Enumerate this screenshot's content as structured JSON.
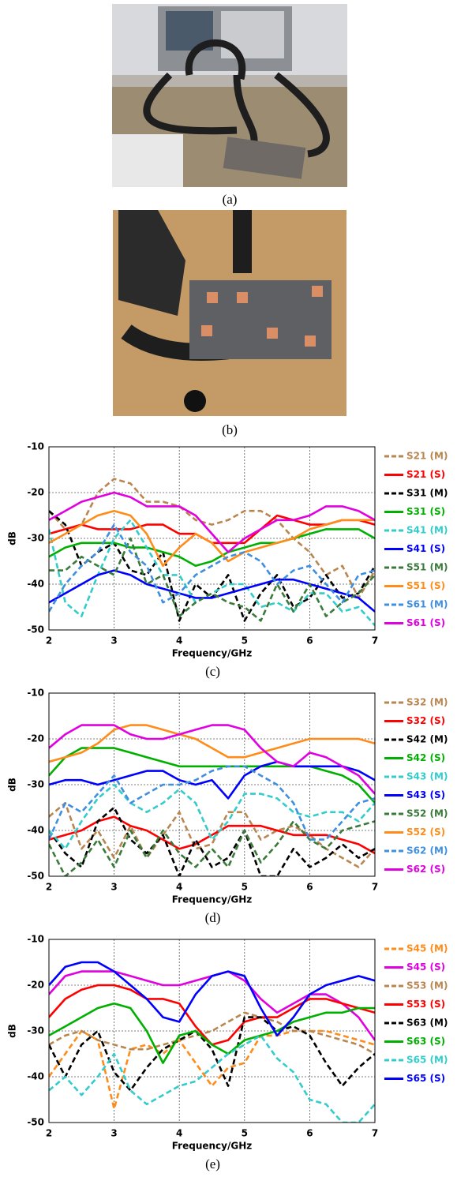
{
  "photos": [
    {
      "caption": "(a)"
    },
    {
      "caption": "(b)"
    }
  ],
  "chart_data": [
    {
      "type": "line",
      "caption": "(c)",
      "xlabel": "Frequency/GHz",
      "ylabel": "dB",
      "grid": true,
      "xlim": [
        2,
        7
      ],
      "xticks": [
        2,
        3,
        4,
        5,
        6,
        7
      ],
      "ylim": [
        -50,
        -10
      ],
      "yticks": [
        -50,
        -40,
        -30,
        -20,
        -10
      ],
      "x": [
        2,
        2.25,
        2.5,
        2.75,
        3,
        3.25,
        3.5,
        3.75,
        4,
        4.25,
        4.5,
        4.75,
        5,
        5.25,
        5.5,
        5.75,
        6,
        6.25,
        6.5,
        6.75,
        7
      ],
      "series": [
        {
          "name": "S21 (M)",
          "color": "#b98650",
          "dashed": true,
          "values": [
            -24,
            -28,
            -27,
            -20,
            -17,
            -18,
            -22,
            -22,
            -23,
            -26,
            -27,
            -26,
            -24,
            -24,
            -26,
            -30,
            -33,
            -38,
            -36,
            -43,
            -37
          ]
        },
        {
          "name": "S21 (S)",
          "color": "#ff0000",
          "dashed": false,
          "values": [
            -29,
            -28,
            -27,
            -28,
            -28,
            -28,
            -27,
            -27,
            -29,
            -29,
            -31,
            -31,
            -31,
            -28,
            -25,
            -26,
            -27,
            -27,
            -26,
            -26,
            -27
          ]
        },
        {
          "name": "S31 (M)",
          "color": "#000000",
          "dashed": true,
          "values": [
            -24,
            -27,
            -36,
            -33,
            -31,
            -37,
            -38,
            -33,
            -48,
            -40,
            -43,
            -38,
            -48,
            -42,
            -38,
            -45,
            -43,
            -38,
            -43,
            -42,
            -36
          ]
        },
        {
          "name": "S31 (S)",
          "color": "#00b000",
          "dashed": false,
          "values": [
            -34,
            -32,
            -31,
            -31,
            -31,
            -32,
            -32,
            -33,
            -34,
            -36,
            -35,
            -33,
            -32,
            -31,
            -31,
            -30,
            -29,
            -28,
            -28,
            -28,
            -30
          ]
        },
        {
          "name": "S41 (M)",
          "color": "#33cccc",
          "dashed": true,
          "values": [
            -28,
            -44,
            -47,
            -38,
            -30,
            -26,
            -32,
            -38,
            -38,
            -44,
            -42,
            -40,
            -40,
            -45,
            -44,
            -46,
            -42,
            -42,
            -46,
            -45,
            -49
          ]
        },
        {
          "name": "S41 (S)",
          "color": "#0000ff",
          "dashed": false,
          "values": [
            -44,
            -42,
            -40,
            -38,
            -37,
            -38,
            -40,
            -41,
            -42,
            -43,
            -43,
            -42,
            -41,
            -40,
            -39,
            -39,
            -40,
            -41,
            -42,
            -43,
            -46
          ]
        },
        {
          "name": "S51 (M)",
          "color": "#3a7a3a",
          "dashed": true,
          "values": [
            -37,
            -37,
            -34,
            -36,
            -38,
            -30,
            -40,
            -38,
            -47,
            -44,
            -42,
            -44,
            -45,
            -48,
            -40,
            -46,
            -40,
            -47,
            -44,
            -42,
            -38
          ]
        },
        {
          "name": "S51 (S)",
          "color": "#ff8c1a",
          "dashed": false,
          "values": [
            -31,
            -29,
            -27,
            -25,
            -24,
            -25,
            -29,
            -36,
            -32,
            -29,
            -31,
            -35,
            -33,
            -32,
            -31,
            -30,
            -28,
            -27,
            -26,
            -26,
            -26
          ]
        },
        {
          "name": "S61 (M)",
          "color": "#3f8fe0",
          "dashed": true,
          "values": [
            -46,
            -40,
            -36,
            -33,
            -27,
            -33,
            -36,
            -44,
            -42,
            -38,
            -36,
            -34,
            -33,
            -35,
            -40,
            -37,
            -36,
            -40,
            -44,
            -38,
            -37
          ]
        },
        {
          "name": "S61 (S)",
          "color": "#e000e0",
          "dashed": false,
          "values": [
            -26,
            -24,
            -22,
            -21,
            -20,
            -21,
            -23,
            -23,
            -23,
            -25,
            -29,
            -33,
            -30,
            -28,
            -26,
            -26,
            -25,
            -23,
            -23,
            -24,
            -26
          ]
        }
      ]
    },
    {
      "type": "line",
      "caption": "(d)",
      "xlabel": "Frequency/GHz",
      "ylabel": "dB",
      "grid": true,
      "xlim": [
        2,
        7
      ],
      "xticks": [
        2,
        3,
        4,
        5,
        6,
        7
      ],
      "ylim": [
        -50,
        -10
      ],
      "yticks": [
        -50,
        -40,
        -30,
        -20,
        -10
      ],
      "x": [
        2,
        2.25,
        2.5,
        2.75,
        3,
        3.25,
        3.5,
        3.75,
        4,
        4.25,
        4.5,
        4.75,
        5,
        5.25,
        5.5,
        5.75,
        6,
        6.25,
        6.5,
        6.75,
        7
      ],
      "series": [
        {
          "name": "S32 (M)",
          "color": "#b98650",
          "dashed": true,
          "values": [
            -37,
            -34,
            -44,
            -40,
            -46,
            -39,
            -46,
            -41,
            -36,
            -44,
            -43,
            -36,
            -36,
            -42,
            -40,
            -39,
            -41,
            -44,
            -46,
            -48,
            -44
          ]
        },
        {
          "name": "S32 (S)",
          "color": "#ff0000",
          "dashed": false,
          "values": [
            -42,
            -41,
            -40,
            -38,
            -37,
            -39,
            -40,
            -42,
            -44,
            -43,
            -41,
            -39,
            -39,
            -39,
            -40,
            -41,
            -41,
            -41,
            -42,
            -43,
            -45
          ]
        },
        {
          "name": "S42 (M)",
          "color": "#000000",
          "dashed": true,
          "values": [
            -40,
            -45,
            -48,
            -38,
            -35,
            -42,
            -45,
            -41,
            -50,
            -42,
            -48,
            -46,
            -40,
            -50,
            -50,
            -44,
            -48,
            -46,
            -43,
            -46,
            -44
          ]
        },
        {
          "name": "S42 (S)",
          "color": "#00b000",
          "dashed": false,
          "values": [
            -28,
            -24,
            -22,
            -22,
            -22,
            -23,
            -24,
            -25,
            -26,
            -26,
            -26,
            -26,
            -26,
            -26,
            -26,
            -26,
            -26,
            -27,
            -28,
            -30,
            -34
          ]
        },
        {
          "name": "S43 (M)",
          "color": "#33cccc",
          "dashed": true,
          "values": [
            -40,
            -44,
            -38,
            -33,
            -30,
            -34,
            -36,
            -34,
            -31,
            -34,
            -42,
            -38,
            -32,
            -32,
            -33,
            -36,
            -37,
            -36,
            -36,
            -38,
            -34
          ]
        },
        {
          "name": "S43 (S)",
          "color": "#0000ff",
          "dashed": false,
          "values": [
            -30,
            -29,
            -29,
            -30,
            -29,
            -28,
            -27,
            -27,
            -29,
            -30,
            -29,
            -33,
            -28,
            -26,
            -25,
            -26,
            -26,
            -26,
            -26,
            -27,
            -29
          ]
        },
        {
          "name": "S52 (M)",
          "color": "#3a7a3a",
          "dashed": true,
          "values": [
            -43,
            -50,
            -47,
            -42,
            -48,
            -40,
            -46,
            -40,
            -45,
            -48,
            -44,
            -48,
            -40,
            -47,
            -43,
            -38,
            -42,
            -44,
            -40,
            -39,
            -38
          ]
        },
        {
          "name": "S52 (S)",
          "color": "#ff8c1a",
          "dashed": false,
          "values": [
            -25,
            -24,
            -23,
            -21,
            -18,
            -17,
            -17,
            -18,
            -19,
            -20,
            -22,
            -24,
            -24,
            -23,
            -22,
            -21,
            -20,
            -20,
            -20,
            -20,
            -21
          ]
        },
        {
          "name": "S62 (M)",
          "color": "#3f8fe0",
          "dashed": true,
          "values": [
            -42,
            -34,
            -36,
            -32,
            -28,
            -34,
            -32,
            -30,
            -30,
            -29,
            -27,
            -26,
            -26,
            -28,
            -30,
            -34,
            -42,
            -42,
            -38,
            -34,
            -33
          ]
        },
        {
          "name": "S62 (S)",
          "color": "#e000e0",
          "dashed": false,
          "values": [
            -22,
            -19,
            -17,
            -17,
            -17,
            -19,
            -20,
            -20,
            -19,
            -18,
            -17,
            -17,
            -18,
            -22,
            -25,
            -26,
            -23,
            -24,
            -26,
            -28,
            -32
          ]
        }
      ]
    },
    {
      "type": "line",
      "caption": "(e)",
      "xlabel": "Frequency/GHz",
      "ylabel": "dB",
      "grid": true,
      "xlim": [
        2,
        7
      ],
      "xticks": [
        2,
        3,
        4,
        5,
        6,
        7
      ],
      "ylim": [
        -50,
        -10
      ],
      "yticks": [
        -50,
        -40,
        -30,
        -20,
        -10
      ],
      "x": [
        2,
        2.25,
        2.5,
        2.75,
        3,
        3.25,
        3.5,
        3.75,
        4,
        4.25,
        4.5,
        4.75,
        5,
        5.25,
        5.5,
        5.75,
        6,
        6.25,
        6.5,
        6.75,
        7
      ],
      "series": [
        {
          "name": "S45 (M)",
          "color": "#ff8c1a",
          "dashed": true,
          "values": [
            -40,
            -35,
            -30,
            -32,
            -47,
            -34,
            -33,
            -35,
            -32,
            -37,
            -42,
            -38,
            -37,
            -31,
            -31,
            -30,
            -30,
            -30,
            -31,
            -32,
            -33
          ]
        },
        {
          "name": "S45 (S)",
          "color": "#e000e0",
          "dashed": false,
          "values": [
            -22,
            -18,
            -17,
            -17,
            -17,
            -18,
            -19,
            -20,
            -20,
            -19,
            -18,
            -17,
            -19,
            -23,
            -26,
            -24,
            -22,
            -22,
            -24,
            -27,
            -32
          ]
        },
        {
          "name": "S53 (M)",
          "color": "#b98650",
          "dashed": true,
          "values": [
            -33,
            -31,
            -30,
            -32,
            -33,
            -34,
            -34,
            -33,
            -32,
            -31,
            -30,
            -28,
            -26,
            -27,
            -28,
            -30,
            -30,
            -31,
            -32,
            -33,
            -35
          ]
        },
        {
          "name": "S53 (S)",
          "color": "#ff0000",
          "dashed": false,
          "values": [
            -27,
            -23,
            -21,
            -20,
            -20,
            -21,
            -23,
            -23,
            -24,
            -29,
            -33,
            -32,
            -28,
            -27,
            -27,
            -25,
            -23,
            -23,
            -24,
            -25,
            -26
          ]
        },
        {
          "name": "S63 (M)",
          "color": "#000000",
          "dashed": true,
          "values": [
            -33,
            -40,
            -33,
            -30,
            -39,
            -43,
            -38,
            -34,
            -32,
            -30,
            -34,
            -42,
            -27,
            -27,
            -30,
            -29,
            -31,
            -37,
            -42,
            -38,
            -35
          ]
        },
        {
          "name": "S63 (S)",
          "color": "#00b000",
          "dashed": false,
          "values": [
            -31,
            -29,
            -27,
            -25,
            -24,
            -25,
            -30,
            -37,
            -31,
            -30,
            -33,
            -35,
            -32,
            -31,
            -30,
            -28,
            -27,
            -26,
            -26,
            -25,
            -25
          ]
        },
        {
          "name": "S65 (M)",
          "color": "#33cccc",
          "dashed": true,
          "values": [
            -43,
            -40,
            -44,
            -40,
            -35,
            -43,
            -46,
            -44,
            -42,
            -41,
            -38,
            -35,
            -33,
            -31,
            -36,
            -39,
            -45,
            -46,
            -50,
            -50,
            -46
          ]
        },
        {
          "name": "S65 (S)",
          "color": "#0000ff",
          "dashed": false,
          "values": [
            -20,
            -16,
            -15,
            -15,
            -17,
            -20,
            -23,
            -27,
            -28,
            -22,
            -18,
            -17,
            -18,
            -25,
            -31,
            -27,
            -22,
            -20,
            -19,
            -18,
            -19
          ]
        }
      ]
    }
  ]
}
